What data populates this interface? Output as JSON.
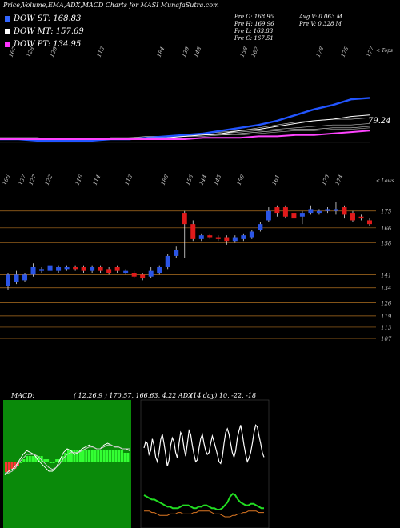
{
  "title": "Price,Volume,EMA,ADX,MACD Charts for MASI MunafaSutra.com",
  "legend": [
    {
      "label": "DOW ST: 168.83",
      "color": "#3366ff"
    },
    {
      "label": "DOW MT: 157.69",
      "color": "#ffffff"
    },
    {
      "label": "DOW PT: 134.95",
      "color": "#ff33ff"
    }
  ],
  "stats": {
    "pre_o": "Pre   O: 168.95",
    "pre_h": "Pre   H: 169.96",
    "pre_l": "Pre   L: 163.83",
    "pre_c": "Pre   C: 167.51",
    "avg_v": "Avg V: 0.063  M",
    "pre_v": "Pre   V: 0.328  M"
  },
  "labels": {
    "top_right": "< Tops",
    "mid_right": "< Lows",
    "ema_value": "79.24",
    "macd": "MACD:",
    "macd_params": "( 12,26,9 ) 170.57,  166.63, 4.22 ADX",
    "adx_params": "(14  day) 10,  -22,  -18"
  },
  "chart_data": [
    {
      "type": "line",
      "name": "ema-panel",
      "top_labels": [
        "167",
        "128",
        "129",
        "113",
        "184",
        "139",
        "148",
        "158",
        "162",
        "178",
        "175",
        "177"
      ],
      "series": [
        {
          "color": "#2255ff",
          "values": [
            79,
            79,
            78,
            78,
            78,
            78,
            79,
            79,
            80,
            81,
            82,
            83,
            85,
            87,
            89,
            92,
            96,
            100,
            103,
            107,
            108
          ]
        },
        {
          "color": "#ffffff",
          "values": [
            80,
            80,
            80,
            79,
            79,
            79,
            79,
            79,
            80,
            80,
            81,
            82,
            83,
            85,
            86,
            88,
            90,
            92,
            93,
            95,
            96
          ]
        },
        {
          "color": "#ff44ff",
          "values": [
            79,
            79,
            79,
            79,
            79,
            79,
            79,
            79,
            79,
            79,
            79,
            80,
            80,
            80,
            81,
            81,
            82,
            82,
            83,
            84,
            85
          ]
        }
      ]
    },
    {
      "type": "candlestick",
      "name": "price-panel",
      "bottom_labels": [
        "166",
        "137",
        "127",
        "122",
        "116",
        "114",
        "113",
        "188",
        "156",
        "144",
        "145",
        "159",
        "161",
        "170",
        "174"
      ],
      "right_ticks": [
        "175",
        "166",
        "158",
        "141",
        "134",
        "126",
        "119",
        "113",
        "107"
      ],
      "candles": [
        {
          "o": 135,
          "c": 141,
          "h": 142,
          "l": 133
        },
        {
          "o": 137,
          "c": 141,
          "h": 143,
          "l": 136
        },
        {
          "o": 138,
          "c": 141,
          "h": 142,
          "l": 137
        },
        {
          "o": 141,
          "c": 145,
          "h": 147,
          "l": 140
        },
        {
          "o": 143,
          "c": 144,
          "h": 145,
          "l": 142
        },
        {
          "o": 143,
          "c": 146,
          "h": 147,
          "l": 142
        },
        {
          "o": 143,
          "c": 145,
          "h": 146,
          "l": 142
        },
        {
          "o": 144,
          "c": 145,
          "h": 146,
          "l": 143
        },
        {
          "o": 145,
          "c": 144,
          "h": 146,
          "l": 143
        },
        {
          "o": 145,
          "c": 143,
          "h": 146,
          "l": 142
        },
        {
          "o": 143,
          "c": 145,
          "h": 146,
          "l": 142
        },
        {
          "o": 145,
          "c": 143,
          "h": 146,
          "l": 142
        },
        {
          "o": 144,
          "c": 142,
          "h": 145,
          "l": 141
        },
        {
          "o": 145,
          "c": 143,
          "h": 146,
          "l": 142
        },
        {
          "o": 142,
          "c": 143,
          "h": 144,
          "l": 141
        },
        {
          "o": 142,
          "c": 140,
          "h": 143,
          "l": 139
        },
        {
          "o": 141,
          "c": 139,
          "h": 142,
          "l": 138
        },
        {
          "o": 140,
          "c": 143,
          "h": 145,
          "l": 139
        },
        {
          "o": 142,
          "c": 145,
          "h": 146,
          "l": 141
        },
        {
          "o": 145,
          "c": 151,
          "h": 152,
          "l": 144
        },
        {
          "o": 151,
          "c": 154,
          "h": 156,
          "l": 150
        },
        {
          "o": 174,
          "c": 168,
          "h": 175,
          "l": 150
        },
        {
          "o": 168,
          "c": 160,
          "h": 170,
          "l": 159
        },
        {
          "o": 160,
          "c": 162,
          "h": 163,
          "l": 159
        },
        {
          "o": 162,
          "c": 161,
          "h": 163,
          "l": 160
        },
        {
          "o": 161,
          "c": 160,
          "h": 162,
          "l": 159
        },
        {
          "o": 161,
          "c": 159,
          "h": 162,
          "l": 157
        },
        {
          "o": 159,
          "c": 161,
          "h": 162,
          "l": 158
        },
        {
          "o": 160,
          "c": 162,
          "h": 163,
          "l": 159
        },
        {
          "o": 161,
          "c": 164,
          "h": 165,
          "l": 160
        },
        {
          "o": 165,
          "c": 168,
          "h": 169,
          "l": 164
        },
        {
          "o": 170,
          "c": 175,
          "h": 177,
          "l": 169
        },
        {
          "o": 177,
          "c": 174,
          "h": 178,
          "l": 172
        },
        {
          "o": 177,
          "c": 172,
          "h": 178,
          "l": 171
        },
        {
          "o": 174,
          "c": 171,
          "h": 175,
          "l": 170
        },
        {
          "o": 172,
          "c": 174,
          "h": 175,
          "l": 168
        },
        {
          "o": 174,
          "c": 176,
          "h": 178,
          "l": 173
        },
        {
          "o": 174,
          "c": 175,
          "h": 176,
          "l": 173
        },
        {
          "o": 175,
          "c": 176,
          "h": 177,
          "l": 174
        },
        {
          "o": 175,
          "c": 176,
          "h": 180,
          "l": 173
        },
        {
          "o": 177,
          "c": 173,
          "h": 178,
          "l": 171
        },
        {
          "o": 174,
          "c": 170,
          "h": 175,
          "l": 169
        },
        {
          "o": 172,
          "c": 171,
          "h": 173,
          "l": 170
        },
        {
          "o": 170,
          "c": 168,
          "h": 171,
          "l": 167
        }
      ],
      "yrange": [
        104,
        183
      ]
    },
    {
      "type": "bar",
      "name": "macd-panel",
      "values": [
        -3,
        -3,
        -2,
        -2,
        -1,
        0,
        1,
        2,
        2,
        2,
        2,
        2,
        2,
        1,
        1,
        0,
        0,
        1,
        1,
        2,
        3,
        4,
        4,
        4,
        4,
        4,
        4,
        4,
        4,
        4,
        4,
        4,
        4,
        4,
        4,
        4,
        4,
        4,
        4,
        4,
        3,
        3
      ],
      "line1": [
        -5,
        -3,
        -2,
        0,
        3,
        6,
        8,
        7,
        6,
        3,
        1,
        -1,
        -3,
        -3,
        -1,
        3,
        7,
        9,
        8,
        6,
        7,
        9,
        10,
        11,
        10,
        9,
        9,
        11,
        12,
        11,
        10,
        10,
        9,
        9,
        8
      ],
      "line2": [
        -4,
        -4,
        -3,
        -1,
        2,
        4,
        6,
        6,
        6,
        5,
        3,
        1,
        -1,
        -2,
        -1,
        1,
        4,
        6,
        7,
        7,
        7,
        8,
        9,
        10,
        10,
        9,
        9,
        10,
        11,
        11,
        10,
        10,
        9,
        9,
        9
      ]
    },
    {
      "type": "line",
      "name": "adx-panel",
      "adx": [
        55,
        62,
        60,
        48,
        52,
        65,
        58,
        45,
        40,
        50,
        64,
        70,
        60,
        48,
        35,
        42,
        58,
        66,
        62,
        50,
        44,
        60,
        72,
        68,
        55,
        46,
        60,
        74,
        70,
        58,
        48,
        40,
        42,
        55,
        65,
        70,
        60,
        52,
        48,
        50,
        60,
        68,
        62,
        55,
        48,
        40,
        38,
        45,
        60,
        72,
        76,
        70,
        60,
        50,
        45,
        52,
        66,
        74,
        80,
        70,
        58,
        48,
        40,
        44,
        50,
        60,
        72,
        80,
        78,
        68,
        60,
        50,
        45
      ],
      "di_plus": [
        25,
        24,
        23,
        22,
        22,
        21,
        20,
        19,
        18,
        17,
        17,
        16,
        16,
        16,
        17,
        18,
        18,
        18,
        17,
        16,
        16,
        17,
        17,
        18,
        18,
        17,
        16,
        16,
        15,
        15,
        16,
        18,
        20,
        24,
        26,
        25,
        22,
        20,
        19,
        18,
        18,
        19,
        19,
        18,
        17,
        16,
        16
      ],
      "di_minus": [
        14,
        14,
        14,
        13,
        13,
        12,
        11,
        11,
        11,
        11,
        12,
        12,
        12,
        13,
        13,
        12,
        12,
        12,
        12,
        13,
        13,
        14,
        14,
        14,
        14,
        14,
        13,
        12,
        12,
        12,
        11,
        10,
        10,
        10,
        11,
        11,
        12,
        12,
        13,
        13,
        14,
        14,
        14,
        14,
        13,
        13,
        13
      ]
    }
  ]
}
